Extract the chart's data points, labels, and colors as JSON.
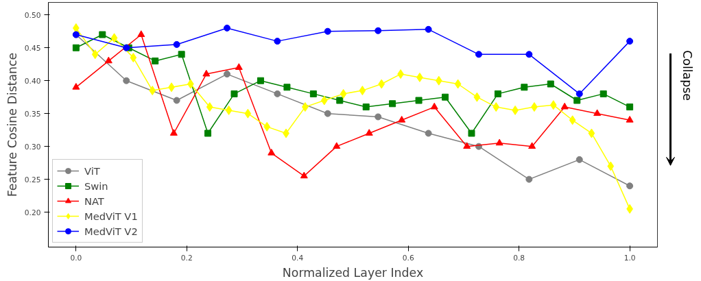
{
  "chart_data": {
    "type": "line",
    "xlabel": "Normalized Layer Index",
    "ylabel": "Feature Cosine Distance",
    "xlim": [
      -0.05,
      1.05
    ],
    "ylim": [
      0.147,
      0.519
    ],
    "xticks": [
      {
        "value": 0,
        "label": "0.0"
      },
      0.2,
      0.4,
      0.6,
      0.8,
      {
        "value": 1,
        "label": "1.0"
      }
    ],
    "yticks": [
      {
        "value": 0.2,
        "label": "0.20"
      },
      0.25,
      {
        "value": 0.3,
        "label": "0.30"
      },
      0.35,
      {
        "value": 0.4,
        "label": "0.40"
      },
      0.45,
      {
        "value": 0.5,
        "label": "0.50"
      }
    ],
    "grid": false,
    "legend": "bottom left",
    "line_style": "solid",
    "annotations": [
      "Collapse"
    ],
    "series": [
      {
        "name": "ViT",
        "color": "#808080",
        "marker": "circle",
        "x": [
          0,
          0.0909,
          0.1818,
          0.2727,
          0.3636,
          0.4545,
          0.5455,
          0.6364,
          0.7273,
          0.8182,
          0.9091,
          1.0
        ],
        "values": [
          0.47,
          0.4,
          0.37,
          0.41,
          0.38,
          0.35,
          0.345,
          0.32,
          0.3,
          0.25,
          0.28,
          0.24
        ]
      },
      {
        "name": "Swin",
        "color": "#008000",
        "marker": "square",
        "x": [
          0,
          0.0476,
          0.0952,
          0.1429,
          0.1905,
          0.2381,
          0.2857,
          0.3333,
          0.381,
          0.4286,
          0.4762,
          0.5238,
          0.5714,
          0.619,
          0.6667,
          0.7143,
          0.7619,
          0.8095,
          0.8571,
          0.9048,
          0.9524,
          1.0
        ],
        "values": [
          0.45,
          0.47,
          0.45,
          0.43,
          0.44,
          0.32,
          0.38,
          0.4,
          0.39,
          0.38,
          0.37,
          0.36,
          0.365,
          0.37,
          0.375,
          0.32,
          0.38,
          0.39,
          0.395,
          0.37,
          0.38,
          0.36
        ]
      },
      {
        "name": "NAT",
        "color": "#ff0000",
        "marker": "triangle",
        "x": [
          0,
          0.0588,
          0.1176,
          0.1765,
          0.2353,
          0.2941,
          0.3529,
          0.4118,
          0.4706,
          0.5294,
          0.5882,
          0.6471,
          0.7059,
          0.7647,
          0.8235,
          0.8824,
          0.9412,
          1.0
        ],
        "values": [
          0.39,
          0.43,
          0.47,
          0.32,
          0.41,
          0.42,
          0.29,
          0.255,
          0.3,
          0.32,
          0.34,
          0.36,
          0.3,
          0.305,
          0.3,
          0.36,
          0.35,
          0.34
        ]
      },
      {
        "name": "MedViT V1",
        "color": "#ffff00",
        "marker": "diamond",
        "x": [
          0,
          0.0345,
          0.069,
          0.1034,
          0.1379,
          0.1724,
          0.2069,
          0.2414,
          0.2759,
          0.3103,
          0.3448,
          0.3793,
          0.4138,
          0.4483,
          0.4828,
          0.5172,
          0.5517,
          0.5862,
          0.6207,
          0.6552,
          0.6897,
          0.7241,
          0.7586,
          0.7931,
          0.8276,
          0.8621,
          0.8966,
          0.931,
          0.9655,
          1.0
        ],
        "values": [
          0.48,
          0.44,
          0.465,
          0.435,
          0.385,
          0.39,
          0.395,
          0.36,
          0.355,
          0.35,
          0.33,
          0.32,
          0.36,
          0.37,
          0.38,
          0.385,
          0.395,
          0.41,
          0.405,
          0.4,
          0.395,
          0.375,
          0.36,
          0.355,
          0.36,
          0.363,
          0.34,
          0.32,
          0.27,
          0.205
        ]
      },
      {
        "name": "MedViT V2",
        "color": "#0000ff",
        "marker": "circle",
        "x": [
          0,
          0.0909,
          0.1818,
          0.2727,
          0.3636,
          0.4545,
          0.5455,
          0.6364,
          0.7273,
          0.8182,
          0.9091,
          1.0
        ],
        "values": [
          0.47,
          0.45,
          0.455,
          0.48,
          0.46,
          0.475,
          0.476,
          0.478,
          0.44,
          0.44,
          0.38,
          0.46
        ]
      }
    ]
  }
}
